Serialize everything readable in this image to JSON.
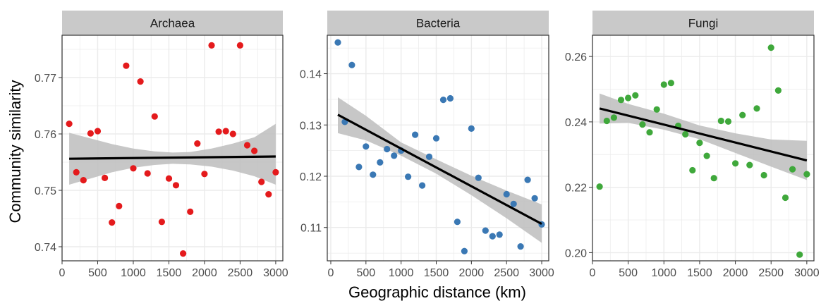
{
  "figure": {
    "xlabel": "Geographic distance (km)",
    "ylabel": "Community similarity"
  },
  "colors": {
    "strip_bg": "#c9c9c9",
    "panel_border": "#333333",
    "grid": "#ebebeb",
    "ribbon": "#bdbdbd",
    "fit_line": "#000000",
    "archaea_points": "#e41a1c",
    "bacteria_points": "#3a78b4",
    "fungi_points": "#3fa83b"
  },
  "chart_data": [
    {
      "type": "scatter",
      "title": "Archaea",
      "xlim": [
        0,
        3100
      ],
      "ylim": [
        0.7375,
        0.7775
      ],
      "x_ticks": [
        0,
        500,
        1000,
        1500,
        2000,
        2500,
        3000
      ],
      "x_tick_labels": [
        "0",
        "500",
        "1000",
        "1500",
        "2000",
        "2500",
        "3000"
      ],
      "y_ticks": [
        0.74,
        0.75,
        0.76,
        0.77
      ],
      "y_tick_labels": [
        "0.74",
        "0.75",
        "0.76",
        "0.77"
      ],
      "grid": true,
      "points": [
        [
          100,
          0.7618
        ],
        [
          200,
          0.7532
        ],
        [
          300,
          0.7518
        ],
        [
          400,
          0.7601
        ],
        [
          500,
          0.7605
        ],
        [
          600,
          0.7522
        ],
        [
          700,
          0.7443
        ],
        [
          800,
          0.7472
        ],
        [
          900,
          0.7721
        ],
        [
          1000,
          0.7539
        ],
        [
          1100,
          0.7693
        ],
        [
          1200,
          0.753
        ],
        [
          1300,
          0.7631
        ],
        [
          1400,
          0.7444
        ],
        [
          1500,
          0.7521
        ],
        [
          1600,
          0.7509
        ],
        [
          1700,
          0.7388
        ],
        [
          1800,
          0.7462
        ],
        [
          1900,
          0.7583
        ],
        [
          2000,
          0.7529
        ],
        [
          2100,
          0.7757
        ],
        [
          2200,
          0.7604
        ],
        [
          2300,
          0.7605
        ],
        [
          2400,
          0.76
        ],
        [
          2500,
          0.7757
        ],
        [
          2600,
          0.758
        ],
        [
          2700,
          0.757
        ],
        [
          2800,
          0.7515
        ],
        [
          2900,
          0.7493
        ],
        [
          3000,
          0.7532
        ]
      ],
      "fit": {
        "x": [
          100,
          3000
        ],
        "y": [
          0.7556,
          0.756
        ]
      },
      "ribbon": {
        "x": [
          100,
          400,
          700,
          1000,
          1300,
          1550,
          1800,
          2100,
          2400,
          2700,
          3000
        ],
        "lower": [
          0.751,
          0.7521,
          0.7532,
          0.754,
          0.7545,
          0.7547,
          0.7546,
          0.7542,
          0.7535,
          0.7525,
          0.751
        ],
        "upper": [
          0.7602,
          0.7592,
          0.7582,
          0.7574,
          0.7569,
          0.7567,
          0.7568,
          0.7574,
          0.7583,
          0.7594,
          0.7618
        ]
      }
    },
    {
      "type": "scatter",
      "title": "Bacteria",
      "xlim": [
        -50,
        3100
      ],
      "ylim": [
        0.1035,
        0.1475
      ],
      "x_ticks": [
        0,
        500,
        1000,
        1500,
        2000,
        2500,
        3000
      ],
      "x_tick_labels": [
        "0",
        "500",
        "1000",
        "1500",
        "2000",
        "2500",
        "3000"
      ],
      "y_ticks": [
        0.11,
        0.12,
        0.13,
        0.14
      ],
      "y_tick_labels": [
        "0.11",
        "0.12",
        "0.13",
        "0.14"
      ],
      "grid": true,
      "points": [
        [
          100,
          0.1461
        ],
        [
          200,
          0.1306
        ],
        [
          300,
          0.1417
        ],
        [
          400,
          0.1218
        ],
        [
          500,
          0.1258
        ],
        [
          600,
          0.1203
        ],
        [
          700,
          0.1227
        ],
        [
          800,
          0.1253
        ],
        [
          900,
          0.124
        ],
        [
          1000,
          0.125
        ],
        [
          1100,
          0.1199
        ],
        [
          1200,
          0.1281
        ],
        [
          1300,
          0.1182
        ],
        [
          1400,
          0.1238
        ],
        [
          1500,
          0.1274
        ],
        [
          1600,
          0.1349
        ],
        [
          1700,
          0.1352
        ],
        [
          1800,
          0.1111
        ],
        [
          1900,
          0.1054
        ],
        [
          2000,
          0.1293
        ],
        [
          2100,
          0.1197
        ],
        [
          2200,
          0.1094
        ],
        [
          2300,
          0.1083
        ],
        [
          2400,
          0.1086
        ],
        [
          2500,
          0.1165
        ],
        [
          2600,
          0.1146
        ],
        [
          2700,
          0.1063
        ],
        [
          2800,
          0.1193
        ],
        [
          2900,
          0.1157
        ],
        [
          3000,
          0.1106
        ]
      ],
      "fit": {
        "x": [
          100,
          3000
        ],
        "y": [
          0.132,
          0.1107
        ]
      },
      "ribbon": {
        "x": [
          100,
          500,
          1000,
          1500,
          2000,
          2500,
          3000
        ],
        "lower": [
          0.1284,
          0.127,
          0.124,
          0.1205,
          0.1163,
          0.1118,
          0.107
        ],
        "upper": [
          0.1354,
          0.1318,
          0.1266,
          0.1233,
          0.1201,
          0.1172,
          0.1145
        ]
      }
    },
    {
      "type": "scatter",
      "title": "Fungi",
      "xlim": [
        0,
        3100
      ],
      "ylim": [
        0.1975,
        0.2665
      ],
      "x_ticks": [
        0,
        500,
        1000,
        1500,
        2000,
        2500,
        3000
      ],
      "x_tick_labels": [
        "0",
        "500",
        "1000",
        "1500",
        "2000",
        "2500",
        "3000"
      ],
      "y_ticks": [
        0.2,
        0.22,
        0.24,
        0.26
      ],
      "y_tick_labels": [
        "0.20",
        "0.22",
        "0.24",
        "0.26"
      ],
      "grid": true,
      "points": [
        [
          100,
          0.2202
        ],
        [
          200,
          0.2403
        ],
        [
          300,
          0.2413
        ],
        [
          400,
          0.2467
        ],
        [
          500,
          0.2473
        ],
        [
          600,
          0.2481
        ],
        [
          700,
          0.2392
        ],
        [
          800,
          0.2368
        ],
        [
          900,
          0.2438
        ],
        [
          1000,
          0.2514
        ],
        [
          1100,
          0.2519
        ],
        [
          1200,
          0.2388
        ],
        [
          1300,
          0.2362
        ],
        [
          1400,
          0.2252
        ],
        [
          1500,
          0.2336
        ],
        [
          1600,
          0.2296
        ],
        [
          1700,
          0.2228
        ],
        [
          1800,
          0.2403
        ],
        [
          1900,
          0.2401
        ],
        [
          2000,
          0.2273
        ],
        [
          2100,
          0.2421
        ],
        [
          2200,
          0.2268
        ],
        [
          2300,
          0.2441
        ],
        [
          2400,
          0.2237
        ],
        [
          2500,
          0.2627
        ],
        [
          2600,
          0.2496
        ],
        [
          2700,
          0.2168
        ],
        [
          2800,
          0.2255
        ],
        [
          2900,
          0.1994
        ],
        [
          3000,
          0.224
        ]
      ],
      "fit": {
        "x": [
          100,
          3000
        ],
        "y": [
          0.2441,
          0.2282
        ]
      },
      "ribbon": {
        "x": [
          100,
          500,
          1000,
          1500,
          2000,
          2500,
          3000
        ],
        "lower": [
          0.2395,
          0.2397,
          0.2376,
          0.2347,
          0.2305,
          0.2263,
          0.2222
        ],
        "upper": [
          0.2487,
          0.2455,
          0.2425,
          0.2389,
          0.2365,
          0.2346,
          0.2342
        ]
      }
    }
  ]
}
